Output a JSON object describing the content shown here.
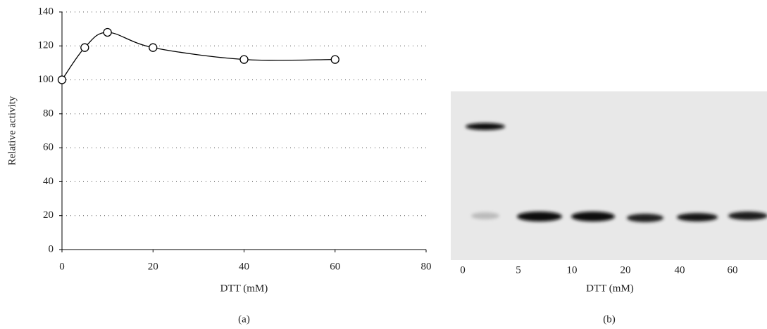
{
  "chart_data": [
    {
      "type": "line",
      "panel_label": "(a)",
      "xlabel": "DTT (mM)",
      "ylabel": "Relative activity",
      "x": [
        0,
        5,
        10,
        20,
        40,
        60
      ],
      "values": [
        100,
        119,
        128,
        119,
        112,
        112
      ],
      "color": "#000000",
      "xlim": [
        0,
        80
      ],
      "ylim": [
        0,
        140
      ],
      "xticks": [
        0,
        20,
        40,
        60,
        80
      ],
      "yticks": [
        0,
        20,
        40,
        60,
        80,
        100,
        120,
        140
      ],
      "grid": true
    },
    {
      "type": "gel",
      "panel_label": "(b)",
      "xlabel": "DTT (mM)",
      "categories": [
        "0",
        "5",
        "10",
        "20",
        "40",
        "60"
      ]
    }
  ]
}
